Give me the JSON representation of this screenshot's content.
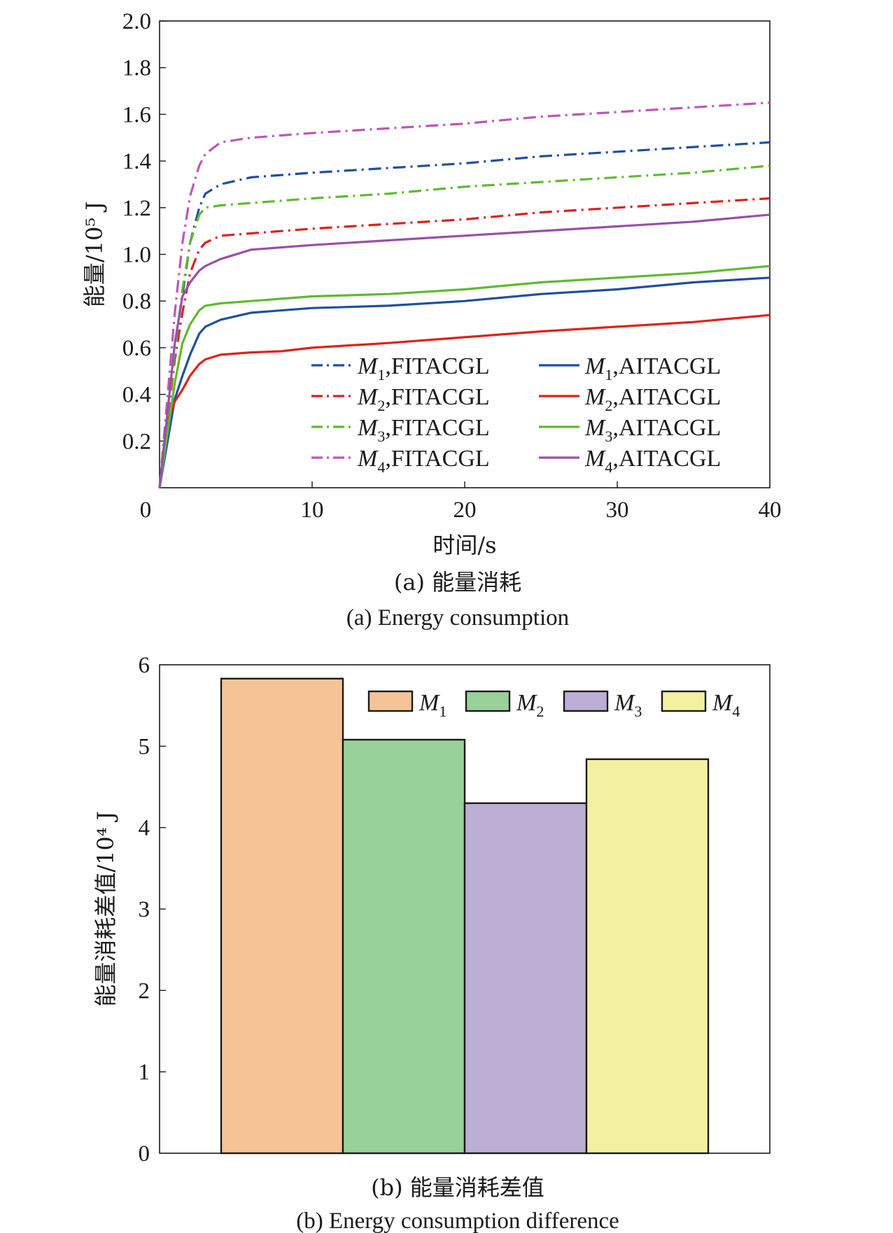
{
  "chart_data": [
    {
      "type": "line",
      "title": "",
      "caption_cn": "(a) 能量消耗",
      "caption_en": "(a) Energy consumption",
      "xlabel": "时间/s",
      "ylabel": "能量/10⁵ J",
      "xlim": [
        0,
        40
      ],
      "ylim": [
        0,
        2.0
      ],
      "xticks": [
        "0",
        "10",
        "20",
        "30",
        "40"
      ],
      "yticks": [
        "0.2",
        "0.4",
        "0.6",
        "0.8",
        "1.0",
        "1.2",
        "1.4",
        "1.6",
        "1.8",
        "2.0"
      ],
      "legend_position": "lower-right",
      "series": [
        {
          "name": "M1,FITACGL",
          "label_main": "M",
          "label_sub": "1",
          "label_suffix": ",FITACGL",
          "color": "#1f4fa0",
          "dash": "dashdot",
          "x": [
            0,
            1,
            2,
            2.6,
            3,
            4,
            6,
            10,
            15,
            20,
            25,
            30,
            35,
            40
          ],
          "y": [
            0,
            0.6,
            1.05,
            1.2,
            1.26,
            1.3,
            1.33,
            1.35,
            1.37,
            1.39,
            1.42,
            1.44,
            1.46,
            1.48
          ]
        },
        {
          "name": "M1,AITACGL",
          "label_main": "M",
          "label_sub": "1",
          "label_suffix": ",AITACGL",
          "color": "#1f4fa0",
          "dash": "solid",
          "x": [
            0,
            1,
            1.5,
            2,
            2.6,
            3,
            4,
            6,
            10,
            15,
            20,
            25,
            30,
            35,
            40
          ],
          "y": [
            0,
            0.38,
            0.48,
            0.57,
            0.66,
            0.69,
            0.72,
            0.75,
            0.77,
            0.78,
            0.8,
            0.83,
            0.85,
            0.88,
            0.9
          ]
        },
        {
          "name": "M2,FITACGL",
          "label_main": "M",
          "label_sub": "2",
          "label_suffix": ",FITACGL",
          "color": "#e0211b",
          "dash": "dashdot",
          "x": [
            0,
            1,
            1.5,
            2,
            2.6,
            3,
            4,
            6,
            10,
            15,
            20,
            25,
            30,
            35,
            40
          ],
          "y": [
            0,
            0.55,
            0.75,
            0.92,
            1.02,
            1.05,
            1.08,
            1.09,
            1.11,
            1.13,
            1.15,
            1.18,
            1.2,
            1.22,
            1.24
          ]
        },
        {
          "name": "M2,AITACGL",
          "label_main": "M",
          "label_sub": "2",
          "label_suffix": ",AITACGL",
          "color": "#e0211b",
          "dash": "solid",
          "x": [
            0,
            0.5,
            1,
            1.5,
            2,
            2.6,
            3,
            4,
            6,
            8,
            10,
            15,
            20,
            25,
            30,
            35,
            40
          ],
          "y": [
            0,
            0.28,
            0.37,
            0.42,
            0.48,
            0.53,
            0.55,
            0.57,
            0.58,
            0.585,
            0.6,
            0.62,
            0.645,
            0.67,
            0.69,
            0.71,
            0.74
          ]
        },
        {
          "name": "M3,FITACGL",
          "label_main": "M",
          "label_sub": "3",
          "label_suffix": ",FITACGL",
          "color": "#5fba2e",
          "dash": "dashdot",
          "x": [
            0,
            1,
            1.5,
            2,
            2.6,
            3,
            4,
            6,
            10,
            15,
            20,
            25,
            30,
            35,
            40
          ],
          "y": [
            0,
            0.58,
            0.85,
            1.05,
            1.17,
            1.2,
            1.21,
            1.22,
            1.24,
            1.26,
            1.29,
            1.31,
            1.33,
            1.35,
            1.38
          ]
        },
        {
          "name": "M3,AITACGL",
          "label_main": "M",
          "label_sub": "3",
          "label_suffix": ",AITACGL",
          "color": "#5fba2e",
          "dash": "solid",
          "x": [
            0,
            1,
            1.5,
            2,
            2.6,
            3,
            4,
            6,
            10,
            15,
            20,
            25,
            30,
            35,
            40
          ],
          "y": [
            0,
            0.45,
            0.62,
            0.7,
            0.76,
            0.78,
            0.79,
            0.8,
            0.82,
            0.83,
            0.85,
            0.88,
            0.9,
            0.92,
            0.95
          ]
        },
        {
          "name": "M4,FITACGL",
          "label_main": "M",
          "label_sub": "4",
          "label_suffix": ",FITACGL",
          "color": "#c055b5",
          "dash": "dashdot",
          "x": [
            0,
            1,
            1.5,
            2,
            2.6,
            3,
            4,
            6,
            10,
            15,
            20,
            25,
            30,
            35,
            40
          ],
          "y": [
            0,
            0.75,
            1.05,
            1.25,
            1.38,
            1.43,
            1.48,
            1.5,
            1.52,
            1.54,
            1.56,
            1.59,
            1.61,
            1.63,
            1.65
          ]
        },
        {
          "name": "M4,AITACGL",
          "label_main": "M",
          "label_sub": "4",
          "label_suffix": ",AITACGL",
          "color": "#9a4fa8",
          "dash": "solid",
          "x": [
            0,
            1,
            1.5,
            2,
            2.6,
            3,
            4,
            6,
            10,
            15,
            20,
            25,
            30,
            35,
            40
          ],
          "y": [
            0,
            0.62,
            0.82,
            0.88,
            0.93,
            0.95,
            0.98,
            1.02,
            1.04,
            1.06,
            1.08,
            1.1,
            1.12,
            1.14,
            1.17
          ]
        }
      ]
    },
    {
      "type": "bar",
      "title": "",
      "caption_cn": "(b) 能量消耗差值",
      "caption_en": "(b) Energy consumption difference",
      "xlabel": "",
      "ylabel": "能量消耗差值/10⁴ J",
      "ylim": [
        0,
        6
      ],
      "yticks": [
        "0",
        "1",
        "2",
        "3",
        "4",
        "5",
        "6"
      ],
      "legend_position": "top-right",
      "categories": [
        "M1",
        "M2",
        "M3",
        "M4"
      ],
      "category_main": [
        "M",
        "M",
        "M",
        "M"
      ],
      "category_sub": [
        "1",
        "2",
        "3",
        "4"
      ],
      "values": [
        5.83,
        5.08,
        4.3,
        4.84
      ],
      "colors": [
        "#f5c496",
        "#99d19a",
        "#bcaed4",
        "#f3f1a0"
      ]
    }
  ]
}
